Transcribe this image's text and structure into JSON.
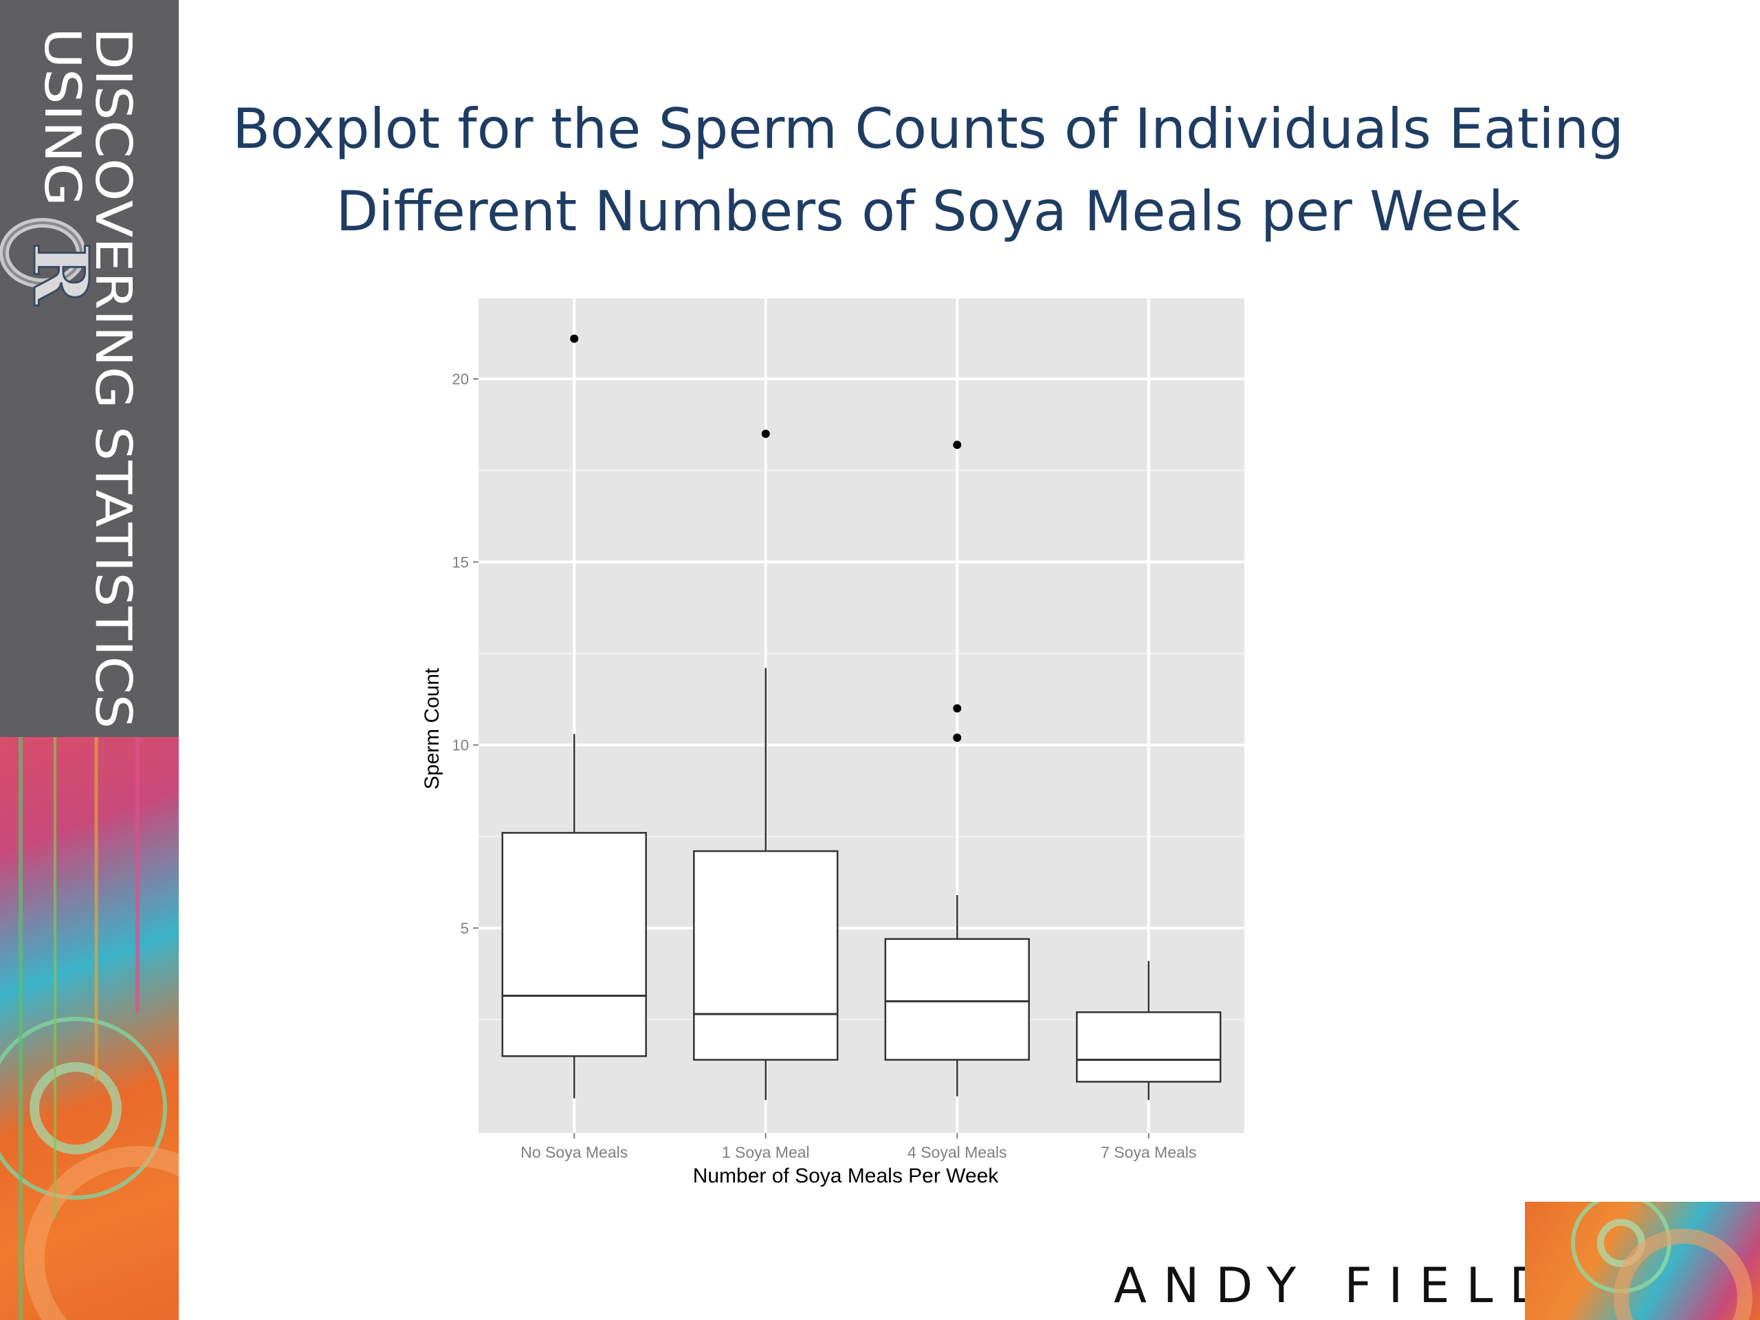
{
  "book": {
    "title_line1": "DISCOVERING STATISTICS",
    "title_line2": "USING",
    "logo_letter": "R"
  },
  "slide": {
    "title_line1": "Boxplot for the Sperm Counts of Individuals Eating",
    "title_line2": "Different Numbers of Soya Meals per Week"
  },
  "author": "ANDY FIELD",
  "colors": {
    "title": "#1f3d63",
    "sidebar": "#5f5f62",
    "panel": "#e5e5e5",
    "grid": "#ffffff"
  },
  "chart_data": {
    "type": "boxplot",
    "xlabel": "Number of Soya Meals Per Week",
    "ylabel": "Sperm Count",
    "ylim": [
      -0.6,
      22.2
    ],
    "yticks": [
      5,
      10,
      15,
      20
    ],
    "grid": true,
    "categories": [
      "No Soya Meals",
      "1 Soya Meal",
      "4 Soyal Meals",
      "7 Soya Meals"
    ],
    "boxes": [
      {
        "whisker_low": 0.35,
        "q1": 1.5,
        "median": 3.15,
        "q3": 7.6,
        "whisker_high": 10.3,
        "outliers": [
          21.1
        ]
      },
      {
        "whisker_low": 0.3,
        "q1": 1.4,
        "median": 2.65,
        "q3": 7.1,
        "whisker_high": 12.1,
        "outliers": [
          18.5
        ]
      },
      {
        "whisker_low": 0.4,
        "q1": 1.4,
        "median": 3.0,
        "q3": 4.7,
        "whisker_high": 5.9,
        "outliers": [
          18.2,
          11.0,
          10.2
        ]
      },
      {
        "whisker_low": 0.3,
        "q1": 0.8,
        "median": 1.4,
        "q3": 2.7,
        "whisker_high": 4.1,
        "outliers": []
      }
    ]
  }
}
